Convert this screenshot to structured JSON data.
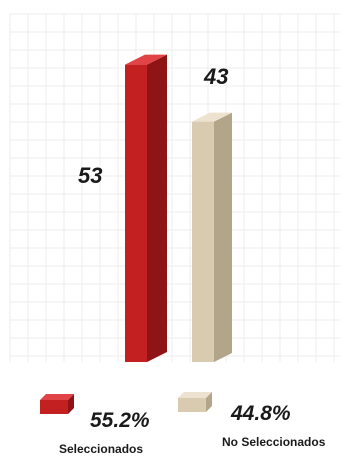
{
  "chart_data": {
    "type": "bar",
    "categories": [
      "Seleccionados",
      "No Seleccionados"
    ],
    "values": [
      53,
      43
    ],
    "percentages": [
      "55.2%",
      "44.8%"
    ],
    "value_labels": [
      "53",
      "43"
    ],
    "ylim": [
      0,
      60
    ],
    "grid": true,
    "legend_placement": "bottom",
    "colors": {
      "Seleccionados": {
        "front": "#c32022",
        "side": "#8f1416",
        "top": "#e04446"
      },
      "No Seleccionados": {
        "front": "#d9cbb0",
        "side": "#b3a589",
        "top": "#ece2cf"
      }
    },
    "grid_color": "#ececec"
  }
}
